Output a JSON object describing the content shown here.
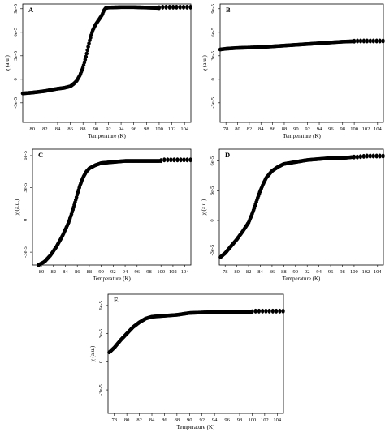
{
  "chart_data": [
    {
      "type": "scatter",
      "panel_label": "A",
      "xlabel": "Temperature (K)",
      "ylabel": "χ (a.u.)",
      "xlim": [
        78.5,
        105
      ],
      "ylim": [
        -5.5e-05,
        9.6e-05
      ],
      "xticks": [
        80,
        82,
        84,
        86,
        88,
        90,
        92,
        94,
        96,
        98,
        100,
        102,
        104
      ],
      "yticks": [
        -3e-05,
        0,
        3e-05,
        6e-05,
        9e-05
      ],
      "ytick_labels": [
        "-3e-5",
        "0",
        "3e-5",
        "6e-5",
        "9e-5"
      ],
      "series": [
        {
          "x": [
            78.5,
            80,
            82,
            84,
            85,
            86,
            86.5,
            87,
            87.5,
            88,
            88.5,
            89,
            89.5,
            90,
            90.5,
            91,
            91.3,
            91.6,
            92,
            94,
            96,
            98,
            99.8,
            100.5,
            102,
            104,
            105
          ],
          "values": [
            -1.8e-05,
            -1.7e-05,
            -1.5e-05,
            -1.2e-05,
            -1.1e-05,
            -9e-06,
            -6e-06,
            -2e-06,
            5e-06,
            1.5e-05,
            3e-05,
            4.8e-05,
            6.2e-05,
            7e-05,
            7.6e-05,
            8.2e-05,
            8.8e-05,
            9.1e-05,
            9.15e-05,
            9.2e-05,
            9.2e-05,
            9.15e-05,
            9.1e-05,
            9.2e-05,
            9.2e-05,
            9.2e-05,
            9.2e-05
          ]
        }
      ]
    },
    {
      "type": "scatter",
      "panel_label": "B",
      "xlabel": "Temperature (K)",
      "ylabel": "χ (a.u.)",
      "xlim": [
        77,
        105
      ],
      "ylim": [
        -5.5e-05,
        9.6e-05
      ],
      "xticks": [
        78,
        80,
        82,
        84,
        86,
        88,
        90,
        92,
        94,
        96,
        98,
        100,
        102,
        104
      ],
      "yticks": [
        -3e-05,
        0,
        3e-05,
        6e-05,
        9e-05
      ],
      "ytick_labels": [
        "-3e-5",
        "0",
        "3e-5",
        "6e-5",
        "9e-5"
      ],
      "series": [
        {
          "x": [
            77,
            78,
            80,
            82,
            84,
            86,
            88,
            90,
            92,
            94,
            96,
            98,
            99.8,
            100.5,
            102,
            104,
            105
          ],
          "values": [
            3.8e-05,
            3.9e-05,
            4e-05,
            4.05e-05,
            4.1e-05,
            4.2e-05,
            4.3e-05,
            4.4e-05,
            4.5e-05,
            4.6e-05,
            4.7e-05,
            4.8e-05,
            4.85e-05,
            4.9e-05,
            4.9e-05,
            4.9e-05,
            4.9e-05
          ]
        }
      ]
    },
    {
      "type": "scatter",
      "panel_label": "C",
      "xlabel": "Temperature (K)",
      "ylabel": "χ (a.u.)",
      "xlim": [
        78.5,
        105
      ],
      "ylim": [
        -4.2e-05,
        6.6e-05
      ],
      "xticks": [
        80,
        82,
        84,
        86,
        88,
        90,
        92,
        94,
        96,
        98,
        100,
        102,
        104
      ],
      "yticks": [
        -3e-05,
        0,
        3e-05,
        6e-05
      ],
      "ytick_labels": [
        "-3e-5",
        "0",
        "3e-5",
        "6e-5"
      ],
      "series": [
        {
          "x": [
            79.5,
            80.5,
            81.5,
            82.5,
            83.5,
            84.5,
            85,
            85.5,
            86,
            86.5,
            87,
            87.5,
            88,
            89,
            90,
            92,
            94,
            96,
            98,
            99.8,
            100.5,
            102,
            104,
            105
          ],
          "values": [
            -4.2e-05,
            -3.9e-05,
            -3.3e-05,
            -2.5e-05,
            -1.5e-05,
            -3e-06,
            5e-06,
            1.4e-05,
            2.4e-05,
            3.3e-05,
            4e-05,
            4.5e-05,
            4.8e-05,
            5.1e-05,
            5.3e-05,
            5.4e-05,
            5.5e-05,
            5.5e-05,
            5.5e-05,
            5.5e-05,
            5.6e-05,
            5.6e-05,
            5.6e-05,
            5.6e-05
          ]
        }
      ]
    },
    {
      "type": "scatter",
      "panel_label": "D",
      "xlabel": "Temperature (K)",
      "ylabel": "χ (a.u.)",
      "xlim": [
        77,
        105
      ],
      "ylim": [
        -4.5e-05,
        7.2e-05
      ],
      "xticks": [
        78,
        80,
        82,
        84,
        86,
        88,
        90,
        92,
        94,
        96,
        98,
        100,
        102,
        104
      ],
      "yticks": [
        -3e-05,
        0,
        3e-05,
        6e-05
      ],
      "ytick_labels": [
        "-3e-5",
        "0",
        "3e-5",
        "6e-5"
      ],
      "series": [
        {
          "x": [
            77.2,
            78,
            79,
            80,
            81,
            82,
            82.5,
            83,
            83.5,
            84,
            84.5,
            85,
            86,
            87,
            88,
            90,
            92,
            94,
            96,
            98,
            99.8,
            100.5,
            102,
            104,
            105
          ],
          "values": [
            -3.7e-05,
            -3.3e-05,
            -2.6e-05,
            -1.9e-05,
            -1.1e-05,
            -2e-06,
            5e-06,
            1.3e-05,
            2.2e-05,
            3e-05,
            3.7e-05,
            4.3e-05,
            5e-05,
            5.4e-05,
            5.7e-05,
            5.9e-05,
            6.1e-05,
            6.2e-05,
            6.3e-05,
            6.3e-05,
            6.4e-05,
            6.4e-05,
            6.5e-05,
            6.5e-05,
            6.5e-05
          ]
        }
      ]
    },
    {
      "type": "scatter",
      "panel_label": "E",
      "xlabel": "Temperature (K)",
      "ylabel": "χ (a.u.)",
      "xlim": [
        77,
        105
      ],
      "ylim": [
        -5.5e-05,
        7.2e-05
      ],
      "xticks": [
        78,
        80,
        82,
        84,
        86,
        88,
        90,
        92,
        94,
        96,
        98,
        100,
        102,
        104
      ],
      "yticks": [
        -3e-05,
        0,
        3e-05,
        6e-05
      ],
      "ytick_labels": [
        "-3e-5",
        "0",
        "3e-5",
        "6e-5"
      ],
      "series": [
        {
          "x": [
            77.2,
            78,
            79,
            80,
            81,
            82,
            83,
            84,
            86,
            88,
            90,
            92,
            94,
            96,
            98,
            99.8,
            100.5,
            102,
            104,
            105
          ],
          "values": [
            1e-05,
            1.5e-05,
            2.3e-05,
            3e-05,
            3.7e-05,
            4.2e-05,
            4.6e-05,
            4.8e-05,
            4.9e-05,
            5e-05,
            5.2e-05,
            5.25e-05,
            5.3e-05,
            5.3e-05,
            5.3e-05,
            5.3e-05,
            5.4e-05,
            5.4e-05,
            5.4e-05,
            5.4e-05
          ]
        }
      ]
    }
  ]
}
